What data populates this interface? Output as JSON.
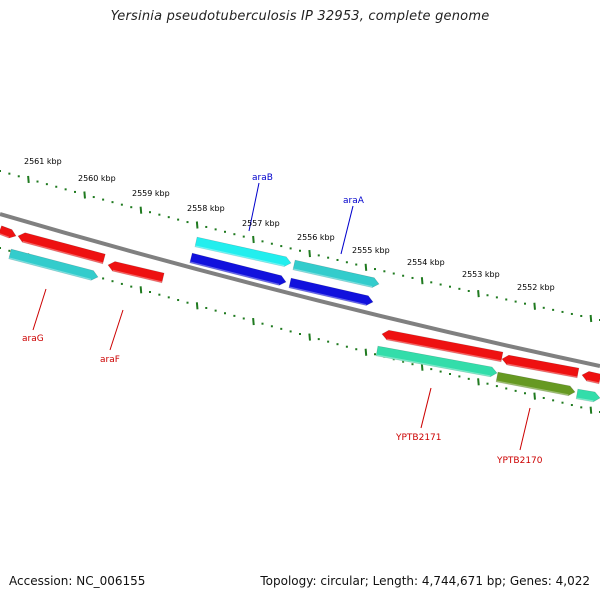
{
  "title": "Yersinia pseudotuberculosis IP 32953, complete genome",
  "footer": {
    "accession": "Accession: NC_006155",
    "summary": "Topology: circular; Length: 4,744,671 bp; Genes: 4,022"
  },
  "colors": {
    "backbone": "#808080",
    "tick_dots": "#1f7a1f",
    "label_blue": "#0000cc",
    "label_red": "#cc0000",
    "gene_red": "#ee1111",
    "gene_cyan": "#33cccc",
    "gene_lightcyan": "#22eeee",
    "gene_blue": "#1111dd",
    "gene_green": "#33ddaa",
    "gene_olive": "#669922"
  },
  "scale_labels": [
    "2561 kbp",
    "2560 kbp",
    "2559 kbp",
    "2558 kbp",
    "2557 kbp",
    "2556 kbp",
    "2555 kbp",
    "2554 kbp",
    "2553 kbp",
    "2552 kbp"
  ],
  "gene_labels": [
    {
      "text": "araB",
      "color": "blue"
    },
    {
      "text": "araA",
      "color": "blue"
    },
    {
      "text": "araG",
      "color": "red"
    },
    {
      "text": "araF",
      "color": "red"
    },
    {
      "text": "YPTB2171",
      "color": "red"
    },
    {
      "text": "YPTB2170",
      "color": "red"
    }
  ]
}
